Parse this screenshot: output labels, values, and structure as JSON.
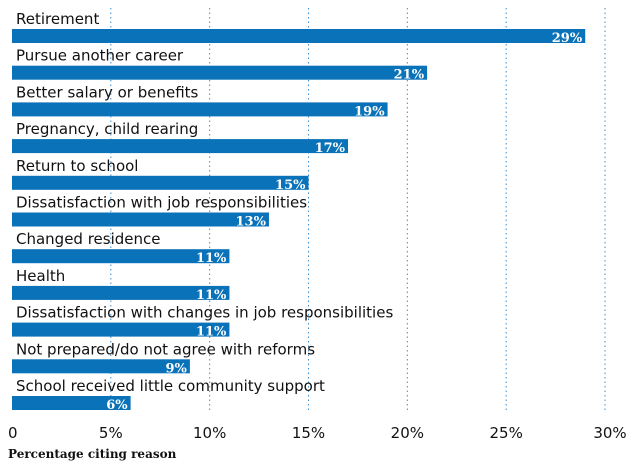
{
  "chart_data": {
    "type": "bar",
    "orientation": "horizontal",
    "categories": [
      "Retirement",
      "Pursue another career",
      "Better salary or benefits",
      "Pregnancy, child rearing",
      "Return to school",
      "Dissatisfaction with job responsibilities",
      "Changed residence",
      "Health",
      "Dissatisfaction with changes in job responsibilities",
      "Not prepared/do not agree with reforms",
      "School received little community support"
    ],
    "values": [
      29,
      21,
      19,
      17,
      15,
      13,
      11,
      11,
      11,
      9,
      6
    ],
    "value_labels": [
      "29%",
      "21%",
      "19%",
      "17%",
      "15%",
      "13%",
      "11%",
      "11%",
      "11%",
      "9%",
      "6%"
    ],
    "xlim": [
      0,
      30
    ],
    "xticks": [
      0,
      5,
      10,
      15,
      20,
      25,
      30
    ],
    "xtick_labels": [
      "0",
      "5%",
      "10%",
      "15%",
      "20%",
      "25%",
      "30%"
    ],
    "xlabel": "Percentage citing reason",
    "title": "",
    "grid": "vertical-dotted",
    "bar_color": "#0a72b8",
    "grid_color": "#3a8fd0"
  }
}
